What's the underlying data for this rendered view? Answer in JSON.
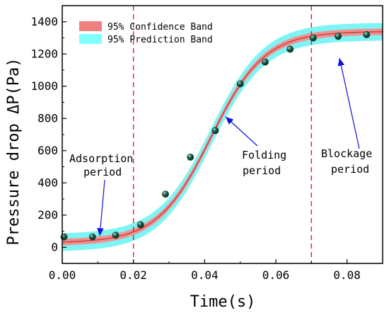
{
  "chart_data": {
    "type": "scatter",
    "xlabel": "Time(s)",
    "ylabel": "Pressure drop ΔP(Pa)",
    "xlim": [
      0,
      0.09
    ],
    "ylim": [
      -100,
      1500
    ],
    "x_ticks": [
      "0.00",
      "0.02",
      "0.04",
      "0.06",
      "0.08"
    ],
    "y_ticks": [
      "0",
      "200",
      "400",
      "600",
      "800",
      "1000",
      "1200",
      "1400"
    ],
    "grid": false,
    "legend": {
      "position": "top-left",
      "entries": [
        {
          "label": "95% Confidence Band",
          "color": "#f08080"
        },
        {
          "label": "95% Prediction Band",
          "color": "#80ffff"
        }
      ]
    },
    "points": {
      "x": [
        0.0005,
        0.0085,
        0.015,
        0.022,
        0.029,
        0.036,
        0.043,
        0.05,
        0.057,
        0.064,
        0.0705,
        0.0775,
        0.0855
      ],
      "y": [
        65,
        65,
        75,
        140,
        330,
        560,
        725,
        1015,
        1150,
        1230,
        1300,
        1310,
        1320
      ]
    },
    "fit": {
      "A1": 28,
      "A2": 1340,
      "x0": 0.0418,
      "dx": 0.0075
    },
    "confidence_half_width": 20,
    "prediction_half_width": 55,
    "vlines": [
      0.02,
      0.07
    ],
    "annotations": [
      {
        "lines": [
          "Adsorption",
          "period"
        ]
      },
      {
        "lines": [
          "Folding",
          "period"
        ]
      },
      {
        "lines": [
          "Blockage",
          "period"
        ]
      }
    ],
    "colors": {
      "prediction_band": "#7ff4f4",
      "confidence_band": "#f09090",
      "fit_line": "#c84646",
      "vline": "#e02020",
      "point": "#1f5f4e",
      "arrow": "#1010e0"
    }
  }
}
